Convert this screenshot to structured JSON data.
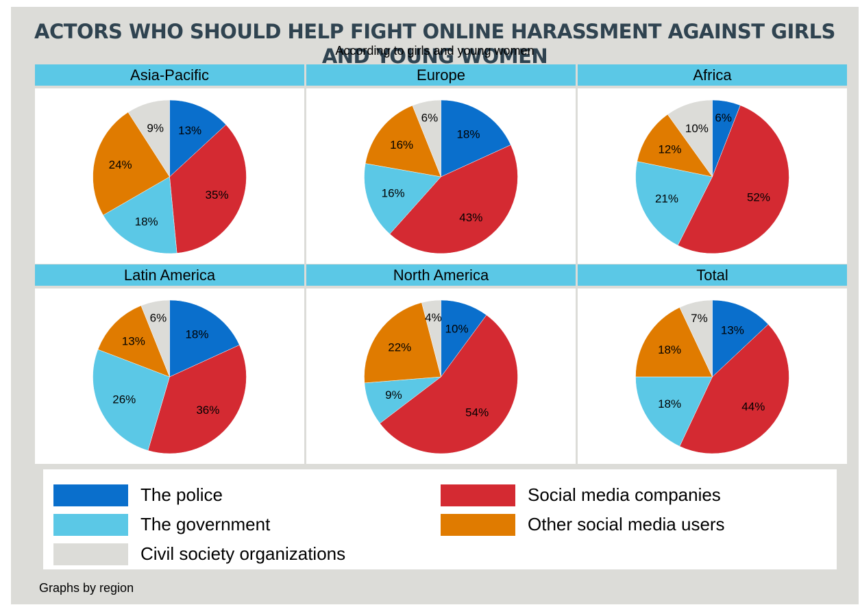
{
  "title": "ACTORS WHO SHOULD HELP FIGHT ONLINE HARASSMENT AGAINST GIRLS AND YOUNG WOMEN",
  "subtitle": "According to girls and young women",
  "note": "Graphs by region",
  "colors": {
    "police": "#0a6fcc",
    "social_media_companies": "#d42a32",
    "government": "#5bc8e6",
    "other_users": "#e07b00",
    "civil_society": "#dcdcd8",
    "header_bar": "#5bc8e6",
    "title_color": "#2f4350"
  },
  "legend": [
    {
      "label": "The police",
      "color": "#0a6fcc"
    },
    {
      "label": "Social media companies",
      "color": "#d42a32"
    },
    {
      "label": "The government",
      "color": "#5bc8e6"
    },
    {
      "label": "Other social media users",
      "color": "#e07b00"
    },
    {
      "label": "Civil society organizations",
      "color": "#dcdcd8"
    }
  ],
  "chart_data": [
    {
      "type": "pie",
      "title": "Asia-Pacific",
      "categories": [
        "The police",
        "Social media companies",
        "The government",
        "Other social media users",
        "Civil society organizations"
      ],
      "values": [
        13,
        35,
        18,
        24,
        9
      ],
      "labels": [
        "13%",
        "35%",
        "18%",
        "24%",
        "9%"
      ]
    },
    {
      "type": "pie",
      "title": "Europe",
      "categories": [
        "The police",
        "Social media companies",
        "The government",
        "Other social media users",
        "Civil society organizations"
      ],
      "values": [
        18,
        43,
        16,
        16,
        6
      ],
      "labels": [
        "18%",
        "43%",
        "16%",
        "16%",
        "6%"
      ]
    },
    {
      "type": "pie",
      "title": "Africa",
      "categories": [
        "The police",
        "Social media companies",
        "The government",
        "Other social media users",
        "Civil society organizations"
      ],
      "values": [
        6,
        52,
        21,
        12,
        10
      ],
      "labels": [
        "6%",
        "52%",
        "21%",
        "12%",
        "10%"
      ]
    },
    {
      "type": "pie",
      "title": "Latin America",
      "categories": [
        "The police",
        "Social media companies",
        "The government",
        "Other social media users",
        "Civil society organizations"
      ],
      "values": [
        18,
        36,
        26,
        13,
        6
      ],
      "labels": [
        "18%",
        "36%",
        "26%",
        "13%",
        "6%"
      ]
    },
    {
      "type": "pie",
      "title": "North America",
      "categories": [
        "The police",
        "Social media companies",
        "The government",
        "Other social media users",
        "Civil society organizations"
      ],
      "values": [
        10,
        54,
        9,
        22,
        4
      ],
      "labels": [
        "10%",
        "54%",
        "9%",
        "22%",
        "4%"
      ]
    },
    {
      "type": "pie",
      "title": "Total",
      "categories": [
        "The police",
        "Social media companies",
        "The government",
        "Other social media users",
        "Civil society organizations"
      ],
      "values": [
        13,
        44,
        18,
        18,
        7
      ],
      "labels": [
        "13%",
        "44%",
        "18%",
        "18%",
        "7%"
      ]
    }
  ]
}
